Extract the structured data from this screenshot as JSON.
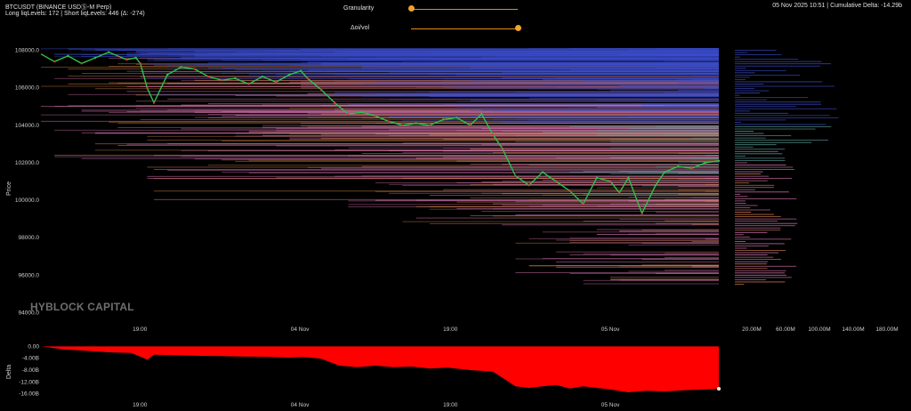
{
  "header": {
    "symbol": "BTCUSDT (BINANCE USDⓈ-M Perp)",
    "levels": "Long liqLevels: 172 | Short liqLevels: 446 (Δ: -274)",
    "datetime_delta": "05 Nov 2025 10:51 | Cumulative Delta: -14.29b"
  },
  "controls": {
    "granularity_label": "Granularity",
    "granularity_value": 0.0,
    "oi_vol_label": "Δoi/vol",
    "oi_vol_value": 1.0
  },
  "watermark": "HYBLOCK CAPITAL",
  "colors": {
    "short_levels_high": "#3c4fd0",
    "short_levels_low": "#5fa8a0",
    "long_levels": "#e07ab8",
    "long_levels_alt": "#e08a4a",
    "candle_up": "#2ec24a",
    "candle_down": "#d83a2a",
    "delta_fill": "#ff0000",
    "slider": "#f0a32a"
  },
  "chart_data": [
    {
      "type": "line",
      "ylabel": "Price",
      "ylim": [
        93500,
        108500
      ],
      "y_ticks": [
        "108000.0",
        "106000.0",
        "104000.0",
        "102000.0",
        "100000.0",
        "98000.0",
        "96000.0",
        "94000.0"
      ],
      "y_tick_values": [
        108000,
        106000,
        104000,
        102000,
        100000,
        98000,
        96000,
        94000
      ],
      "x_ticks": [
        "19:00",
        "04 Nov",
        "19:00",
        "05 Nov"
      ],
      "x_tick_positions": [
        0.219,
        0.573,
        0.906,
        1.26
      ],
      "x_range_days": [
        0.0,
        1.5
      ],
      "series": [
        {
          "x": [
            0.0,
            0.03,
            0.06,
            0.09,
            0.12,
            0.15,
            0.17,
            0.19,
            0.21,
            0.22,
            0.235,
            0.25,
            0.28,
            0.31,
            0.34,
            0.37,
            0.4,
            0.43,
            0.46,
            0.49,
            0.52,
            0.55,
            0.575,
            0.59,
            0.62,
            0.65,
            0.68,
            0.71,
            0.74,
            0.77,
            0.8,
            0.83,
            0.86,
            0.89,
            0.92,
            0.95,
            0.975,
            1.0,
            1.02,
            1.05,
            1.08,
            1.11,
            1.14,
            1.17,
            1.2,
            1.23,
            1.26,
            1.28,
            1.3,
            1.33,
            1.36,
            1.38,
            1.41,
            1.44,
            1.47,
            1.5
          ],
          "y": [
            107800,
            107400,
            107700,
            107300,
            107600,
            107900,
            107700,
            107500,
            107600,
            107300,
            106000,
            105200,
            106700,
            107100,
            107000,
            106600,
            106400,
            106500,
            106200,
            106600,
            106300,
            106700,
            106900,
            106500,
            105900,
            105200,
            104600,
            104700,
            104500,
            104200,
            104000,
            104100,
            104000,
            104300,
            104400,
            104000,
            104600,
            103500,
            102800,
            101300,
            100800,
            101500,
            101000,
            100500,
            99800,
            101200,
            101000,
            100400,
            101200,
            99300,
            100800,
            101500,
            101800,
            101700,
            102000,
            102100
          ]
        }
      ],
      "short_liq_levels_count": 446,
      "long_liq_levels_count": 172
    },
    {
      "type": "bar",
      "orientation": "horizontal",
      "x_ticks": [
        "20.00M",
        "60.00M",
        "100.00M",
        "140.00M",
        "180.00M"
      ],
      "x_tick_values": [
        20,
        60,
        100,
        140,
        180
      ],
      "xlim": [
        0,
        200
      ]
    },
    {
      "type": "area",
      "ylabel": "Delta",
      "ylim": [
        -17,
        1
      ],
      "y_ticks": [
        "0.00",
        "-4.00B",
        "-8.00B",
        "-12.00B",
        "-16.00B"
      ],
      "y_tick_values": [
        0,
        -4,
        -8,
        -12,
        -16
      ],
      "x_ticks": [
        "19:00",
        "04 Nov",
        "19:00",
        "05 Nov"
      ],
      "x": [
        0.0,
        0.05,
        0.1,
        0.15,
        0.2,
        0.235,
        0.25,
        0.3,
        0.35,
        0.4,
        0.45,
        0.5,
        0.55,
        0.58,
        0.62,
        0.66,
        0.7,
        0.74,
        0.78,
        0.82,
        0.86,
        0.9,
        0.95,
        1.0,
        1.02,
        1.05,
        1.08,
        1.11,
        1.14,
        1.17,
        1.2,
        1.23,
        1.26,
        1.3,
        1.34,
        1.38,
        1.42,
        1.46,
        1.5
      ],
      "y": [
        0,
        -1.0,
        -1.5,
        -2.0,
        -2.2,
        -4.5,
        -2.8,
        -3.0,
        -3.2,
        -3.3,
        -3.4,
        -3.5,
        -3.8,
        -3.6,
        -4.2,
        -6.5,
        -7.0,
        -6.5,
        -7.0,
        -6.8,
        -7.5,
        -7.2,
        -8.0,
        -8.5,
        -10.5,
        -13.5,
        -14.0,
        -13.5,
        -13.0,
        -14.2,
        -13.5,
        -14.0,
        -14.5,
        -15.5,
        -15.0,
        -15.2,
        -14.8,
        -14.6,
        -14.29
      ]
    }
  ]
}
